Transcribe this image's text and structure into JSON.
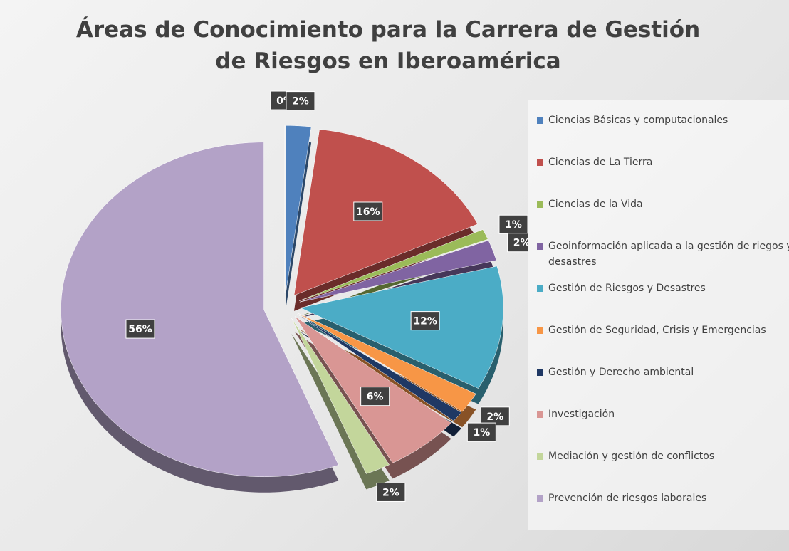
{
  "chart_data": {
    "type": "pie",
    "title": "Áreas de Conocimiento para la Carrera de Gestión de Riesgos en Iberoamérica",
    "categories": [
      null,
      "Ciencias Básicas y computacionales",
      "Ciencias de La Tierra",
      "Ciencias de la Vida",
      "Geoinformación aplicada a la gestión de riegos y desastres",
      "Gestión de Riesgos y Desastres",
      "Gestión de Seguridad, Crisis y Emergencias",
      "Gestión y Derecho ambiental",
      "Investigación",
      "Mediación y gestión de conflictos",
      "Prevención de riesgos laborales"
    ],
    "values": [
      0,
      2,
      16,
      1,
      2,
      12,
      2,
      1,
      6,
      2,
      56
    ],
    "value_labels": [
      "0%",
      "2%",
      "16%",
      "1%",
      "2%",
      "12%",
      "2%",
      "1%",
      "6%",
      "2%",
      "56%"
    ],
    "colors": [
      "#a6a6a6",
      "#4f81bd",
      "#c0504d",
      "#9bbb59",
      "#8064a2",
      "#4bacc6",
      "#f79646",
      "#1f3864",
      "#d99694",
      "#c3d69b",
      "#b3a2c7"
    ],
    "legend": "right"
  }
}
